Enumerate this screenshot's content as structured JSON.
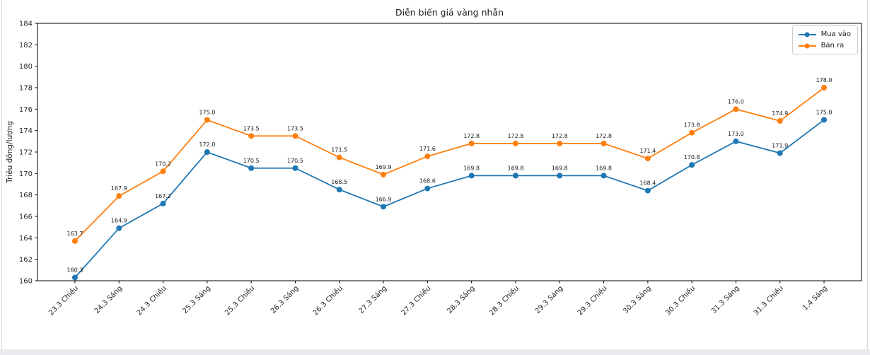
{
  "page": {
    "kind": "line-chart-figure"
  },
  "colors": {
    "buy_series": "#1f77b4",
    "sell_series": "#ff7f0e",
    "spine": "#000000",
    "tick_text": "#262626",
    "label_text": "#1a1a1a",
    "legend_border": "#cccccc",
    "page_border": "#d9d9d9",
    "page_bottom_bar": "#e9ebee"
  },
  "chart_data": {
    "type": "line",
    "title": "Diễn biến giá vàng nhẫn",
    "xlabel": "",
    "ylabel": "Triệu đồng/lượng",
    "ylim": [
      160,
      184
    ],
    "yticks": [
      160,
      162,
      164,
      166,
      168,
      170,
      172,
      174,
      176,
      178,
      180,
      182,
      184
    ],
    "grid": false,
    "point_labels": true,
    "legend_position": "top-right",
    "categories": [
      "23.3 Chiều",
      "24.3 Sáng",
      "24.3 Chiều",
      "25.3 Sáng",
      "25.3 Chiều",
      "26.3 Sáng",
      "26.3 Chiều",
      "27.3 Sáng",
      "27.3 Chiều",
      "28.3 Sáng",
      "28.3 Chiều",
      "29.3 Sáng",
      "29.3 Chiều",
      "30.3 Sáng",
      "30.3 Chiều",
      "31.3 Sáng",
      "31.3 Chiều",
      "1.4 Sáng"
    ],
    "series": [
      {
        "name": "Mua vào",
        "color": "#1f77b4",
        "values": [
          160.3,
          164.9,
          167.2,
          172.0,
          170.5,
          170.5,
          168.5,
          166.9,
          168.6,
          169.8,
          169.8,
          169.8,
          169.8,
          168.4,
          170.8,
          173.0,
          171.9,
          175.0
        ]
      },
      {
        "name": "Bán ra",
        "color": "#ff7f0e",
        "values": [
          163.7,
          167.9,
          170.2,
          175.0,
          173.5,
          173.5,
          171.5,
          169.9,
          171.6,
          172.8,
          172.8,
          172.8,
          172.8,
          171.4,
          173.8,
          176.0,
          174.9,
          178.0
        ]
      }
    ]
  }
}
